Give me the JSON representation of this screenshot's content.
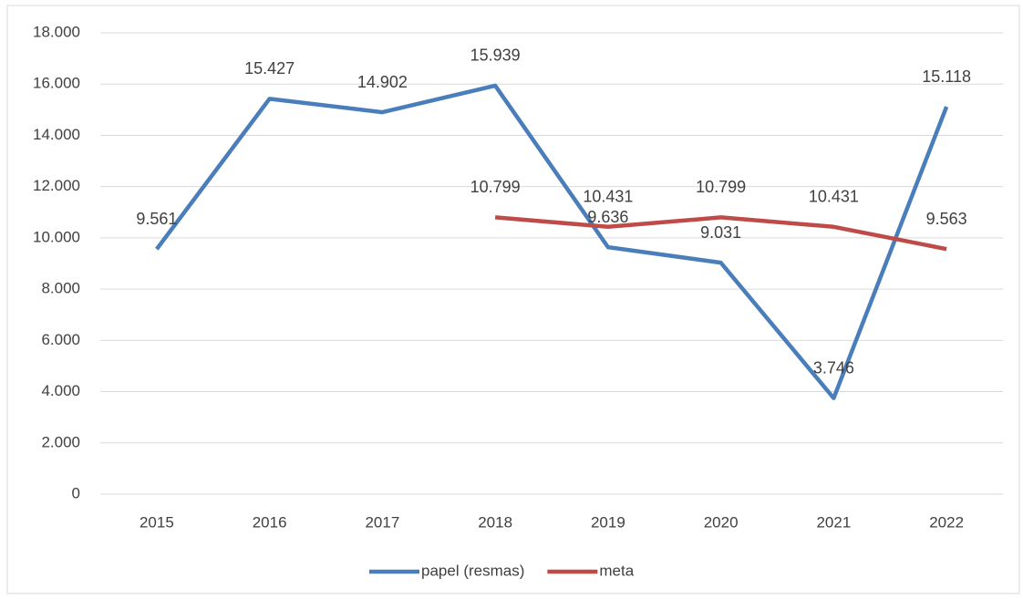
{
  "chart_data": {
    "type": "line",
    "categories": [
      "2015",
      "2016",
      "2017",
      "2018",
      "2019",
      "2020",
      "2021",
      "2022"
    ],
    "series": [
      {
        "name": "papel (resmas)",
        "color": "#4a7ebb",
        "values": [
          9561,
          15427,
          14902,
          15939,
          9636,
          9031,
          3746,
          15118
        ],
        "value_labels": [
          "9.561",
          "15.427",
          "14.902",
          "15.939",
          "9.636",
          "9.031",
          "3.746",
          "15.118"
        ]
      },
      {
        "name": "meta",
        "color": "#be4b48",
        "values": [
          null,
          null,
          null,
          10799,
          10431,
          10799,
          10431,
          9563
        ],
        "value_labels": [
          null,
          null,
          null,
          "10.799",
          "10.431",
          "10.799",
          "10.431",
          "9.563"
        ]
      }
    ],
    "ylim": [
      0,
      18000
    ],
    "yticks": [
      0,
      {
        "value": 2000,
        "label": "2.000"
      },
      {
        "value": 4000,
        "label": "4.000"
      },
      {
        "value": 6000,
        "label": "6.000"
      },
      {
        "value": 8000,
        "label": "8.000"
      },
      {
        "value": 10000,
        "label": "10.000"
      },
      {
        "value": 12000,
        "label": "12.000"
      },
      {
        "value": 14000,
        "label": "14.000"
      },
      {
        "value": 16000,
        "label": "16.000"
      },
      {
        "value": 18000,
        "label": "18.000"
      }
    ],
    "grid": true,
    "legend": "bottom"
  }
}
